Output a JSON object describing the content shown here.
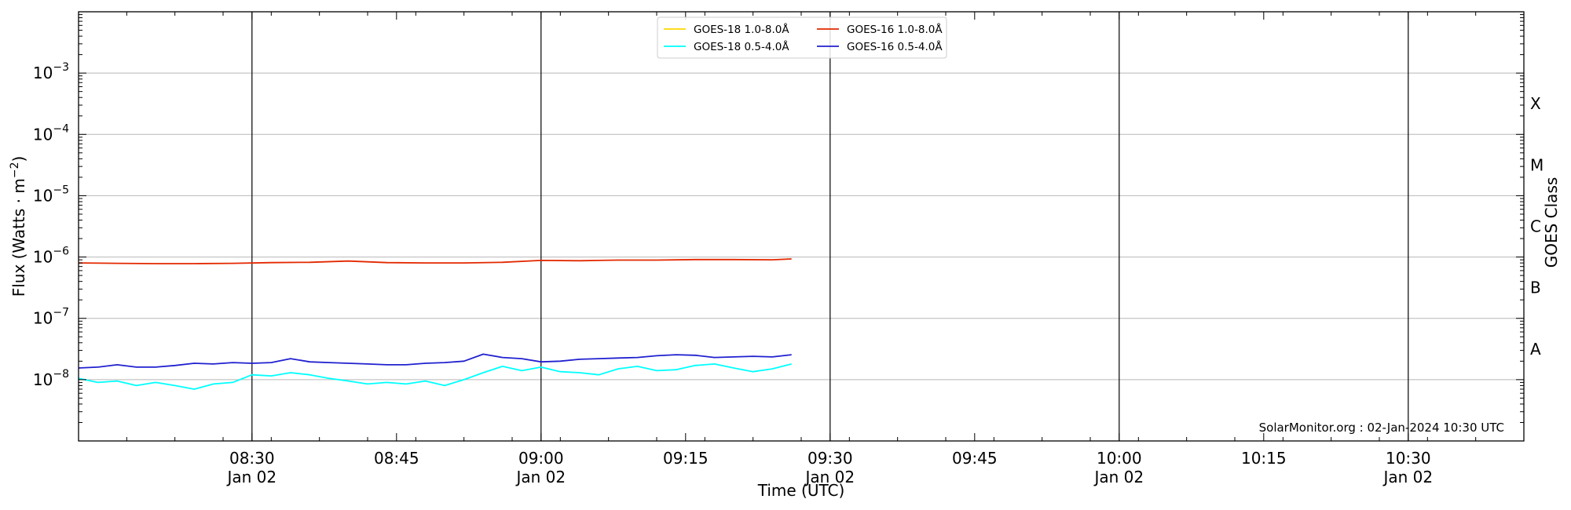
{
  "chart_data": {
    "type": "line",
    "title": "",
    "xlabel": "Time (UTC)",
    "ylabel": "Flux (Watts · m",
    "ylabel_sup": "−2",
    "ylabel_close": ")",
    "y2label": "GOES Class",
    "yscale": "log",
    "ylim": [
      1e-09,
      0.01
    ],
    "xlim": [
      "08:12",
      "10:42"
    ],
    "date": "Jan 02",
    "x_ticks": [
      {
        "t": "08:30",
        "label": "08:30",
        "date": "Jan 02",
        "vline": true
      },
      {
        "t": "08:45",
        "label": "08:45",
        "date": "",
        "vline": false
      },
      {
        "t": "09:00",
        "label": "09:00",
        "date": "Jan 02",
        "vline": true
      },
      {
        "t": "09:15",
        "label": "09:15",
        "date": "",
        "vline": false
      },
      {
        "t": "09:30",
        "label": "09:30",
        "date": "Jan 02",
        "vline": true
      },
      {
        "t": "09:45",
        "label": "09:45",
        "date": "",
        "vline": false
      },
      {
        "t": "10:00",
        "label": "10:00",
        "date": "Jan 02",
        "vline": true
      },
      {
        "t": "10:15",
        "label": "10:15",
        "date": "",
        "vline": false
      },
      {
        "t": "10:30",
        "label": "10:30",
        "date": "Jan 02",
        "vline": true
      }
    ],
    "y_ticks": [
      {
        "value": 1e-08,
        "exp": "−8"
      },
      {
        "value": 1e-07,
        "exp": "−7"
      },
      {
        "value": 1e-06,
        "exp": "−6"
      },
      {
        "value": 1e-05,
        "exp": "−5"
      },
      {
        "value": 0.0001,
        "exp": "−4"
      },
      {
        "value": 0.001,
        "exp": "−3"
      }
    ],
    "goes_classes": [
      {
        "label": "A",
        "value": 3.16e-08
      },
      {
        "label": "B",
        "value": 3.16e-07
      },
      {
        "label": "C",
        "value": 3.16e-06
      },
      {
        "label": "M",
        "value": 3.16e-05
      },
      {
        "label": "X",
        "value": 0.000316
      }
    ],
    "grid": true,
    "legend_placement": "top-center",
    "series": [
      {
        "name": "GOES-18 1.0-8.0Å",
        "color": "#FFD700",
        "x": [],
        "values": []
      },
      {
        "name": "GOES-18 0.5-4.0Å",
        "color": "#00FFFF",
        "x": [
          "08:12",
          "08:14",
          "08:16",
          "08:18",
          "08:20",
          "08:22",
          "08:24",
          "08:26",
          "08:28",
          "08:30",
          "08:32",
          "08:34",
          "08:36",
          "08:38",
          "08:40",
          "08:42",
          "08:44",
          "08:46",
          "08:48",
          "08:50",
          "08:52",
          "08:54",
          "08:56",
          "08:58",
          "09:00",
          "09:02",
          "09:04",
          "09:06",
          "09:08",
          "09:10",
          "09:12",
          "09:14",
          "09:16",
          "09:18",
          "09:20",
          "09:22",
          "09:24",
          "09:26"
        ],
        "values": [
          1.05e-08,
          9e-09,
          9.5e-09,
          8e-09,
          9e-09,
          8e-09,
          7e-09,
          8.5e-09,
          9e-09,
          1.2e-08,
          1.15e-08,
          1.3e-08,
          1.2e-08,
          1.05e-08,
          9.5e-09,
          8.5e-09,
          9e-09,
          8.5e-09,
          9.5e-09,
          8e-09,
          1e-08,
          1.3e-08,
          1.65e-08,
          1.4e-08,
          1.6e-08,
          1.35e-08,
          1.3e-08,
          1.2e-08,
          1.5e-08,
          1.65e-08,
          1.4e-08,
          1.45e-08,
          1.7e-08,
          1.8e-08,
          1.55e-08,
          1.35e-08,
          1.5e-08,
          1.8e-08
        ]
      },
      {
        "name": "GOES-16 1.0-8.0Å",
        "color": "#E32800",
        "x": [
          "08:12",
          "08:16",
          "08:20",
          "08:24",
          "08:28",
          "08:32",
          "08:36",
          "08:40",
          "08:44",
          "08:48",
          "08:52",
          "08:56",
          "09:00",
          "09:04",
          "09:08",
          "09:12",
          "09:16",
          "09:20",
          "09:24",
          "09:26"
        ],
        "values": [
          8e-07,
          7.9e-07,
          7.8e-07,
          7.8e-07,
          7.9e-07,
          8.1e-07,
          8.2e-07,
          8.6e-07,
          8.1e-07,
          8e-07,
          8e-07,
          8.2e-07,
          8.8e-07,
          8.7e-07,
          8.9e-07,
          8.9e-07,
          9.1e-07,
          9.1e-07,
          9e-07,
          9.3e-07
        ]
      },
      {
        "name": "GOES-16 0.5-4.0Å",
        "color": "#2020D0",
        "x": [
          "08:12",
          "08:14",
          "08:16",
          "08:18",
          "08:20",
          "08:22",
          "08:24",
          "08:26",
          "08:28",
          "08:30",
          "08:32",
          "08:34",
          "08:36",
          "08:38",
          "08:40",
          "08:42",
          "08:44",
          "08:46",
          "08:48",
          "08:50",
          "08:52",
          "08:54",
          "08:56",
          "08:58",
          "09:00",
          "09:02",
          "09:04",
          "09:06",
          "09:08",
          "09:10",
          "09:12",
          "09:14",
          "09:16",
          "09:18",
          "09:20",
          "09:22",
          "09:24",
          "09:26"
        ],
        "values": [
          1.55e-08,
          1.6e-08,
          1.75e-08,
          1.6e-08,
          1.6e-08,
          1.7e-08,
          1.85e-08,
          1.8e-08,
          1.9e-08,
          1.85e-08,
          1.9e-08,
          2.2e-08,
          1.95e-08,
          1.9e-08,
          1.85e-08,
          1.8e-08,
          1.75e-08,
          1.75e-08,
          1.85e-08,
          1.9e-08,
          2e-08,
          2.6e-08,
          2.3e-08,
          2.2e-08,
          1.95e-08,
          2e-08,
          2.15e-08,
          2.2e-08,
          2.25e-08,
          2.3e-08,
          2.45e-08,
          2.55e-08,
          2.5e-08,
          2.3e-08,
          2.35e-08,
          2.4e-08,
          2.35e-08,
          2.55e-08
        ]
      }
    ],
    "annotation": "SolarMonitor.org : 02-Jan-2024 10:30 UTC"
  }
}
